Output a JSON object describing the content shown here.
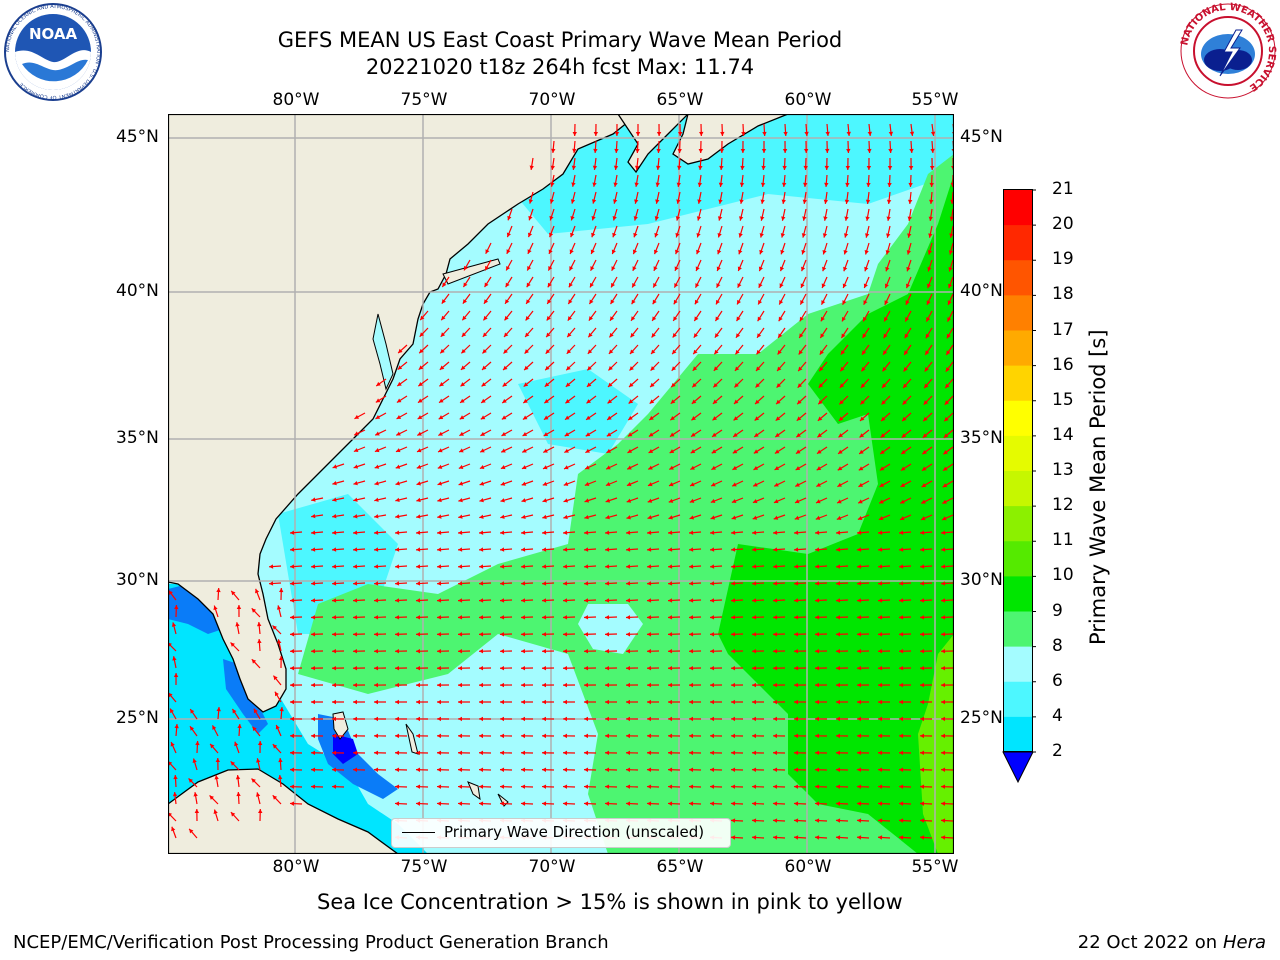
{
  "header": {
    "title_line1": "GEFS MEAN US East Coast Primary Wave Mean Period",
    "title_line2": "20221020 t18z 264h fcst   Max: 11.74"
  },
  "logos": {
    "left": "NOAA",
    "left_ring_text": "NATIONAL OCEANIC AND ATMOSPHERIC ADMINISTRATION · U.S. DEPARTMENT OF COMMERCE",
    "right_ring_text": "NATIONAL WEATHER SERVICE"
  },
  "map": {
    "lon_labels": [
      "80°W",
      "75°W",
      "70°W",
      "65°W",
      "60°W",
      "55°W"
    ],
    "lat_labels": [
      "45°N",
      "40°N",
      "35°N",
      "30°N",
      "25°N"
    ],
    "legend_label": "Primary Wave Direction (unscaled)",
    "colors": {
      "land": "#efedde",
      "band_2_4": "#0a7cf8",
      "band_4_6": "#00e5ff",
      "band_6_8": "#4df7ff",
      "band_8_9": "#a4fcff",
      "band_9_10": "#4df571",
      "band_10_11": "#00e600",
      "band_11_12": "#66f000",
      "arrow": "#ff0000",
      "grid": "#b0b0b0"
    }
  },
  "colorbar": {
    "label": "Primary Wave Mean Period [s]",
    "ticks": [
      "21",
      "20",
      "19",
      "18",
      "17",
      "16",
      "15",
      "14",
      "13",
      "12",
      "11",
      "10",
      "9",
      "8",
      "6",
      "4",
      "2"
    ],
    "colors": [
      "#ff0000",
      "#ff2800",
      "#ff5500",
      "#ff8000",
      "#ffaa00",
      "#ffd400",
      "#ffff00",
      "#e5fb00",
      "#c6f700",
      "#8cf000",
      "#55ea00",
      "#00e600",
      "#4df571",
      "#a4fcff",
      "#4df7ff",
      "#00e5ff",
      "#0a7cf8",
      "#0000ff"
    ]
  },
  "note": "Sea Ice Concentration > 15% is shown in pink to yellow",
  "footer": {
    "left": "NCEP/EMC/Verification Post Processing Product Generation Branch",
    "date": "22 Oct 2022 on ",
    "machine": "Hera"
  }
}
